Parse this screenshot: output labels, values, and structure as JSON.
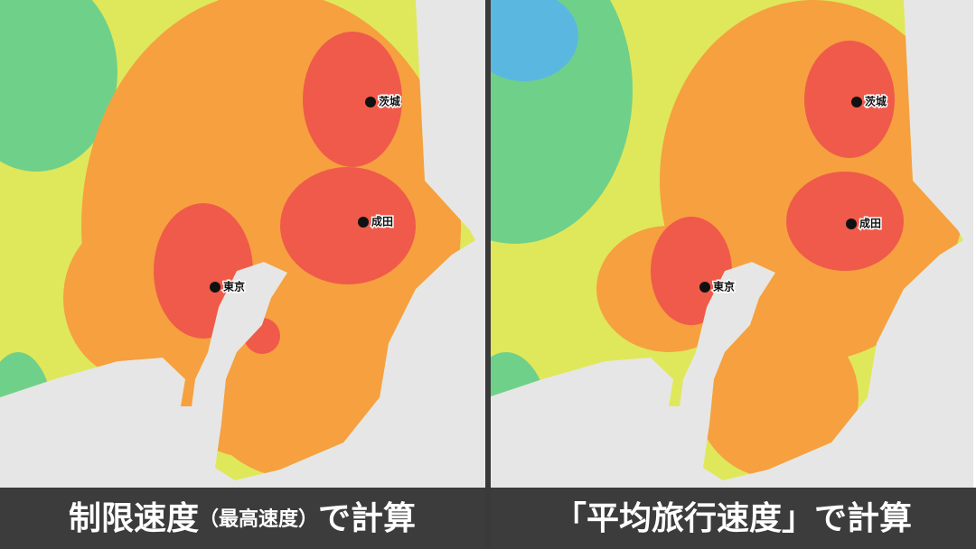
{
  "panels": [
    {
      "caption": {
        "main": "制限速度",
        "sub": "（最高速度）",
        "tail": "で計算"
      },
      "airports": [
        {
          "label": "茨城"
        },
        {
          "label": "成田"
        },
        {
          "label": "東京"
        }
      ]
    },
    {
      "caption": {
        "main": "「平均旅行速度」",
        "tail": "で計算"
      },
      "airports": [
        {
          "label": "茨城"
        },
        {
          "label": "成田"
        },
        {
          "label": "東京"
        }
      ]
    }
  ]
}
